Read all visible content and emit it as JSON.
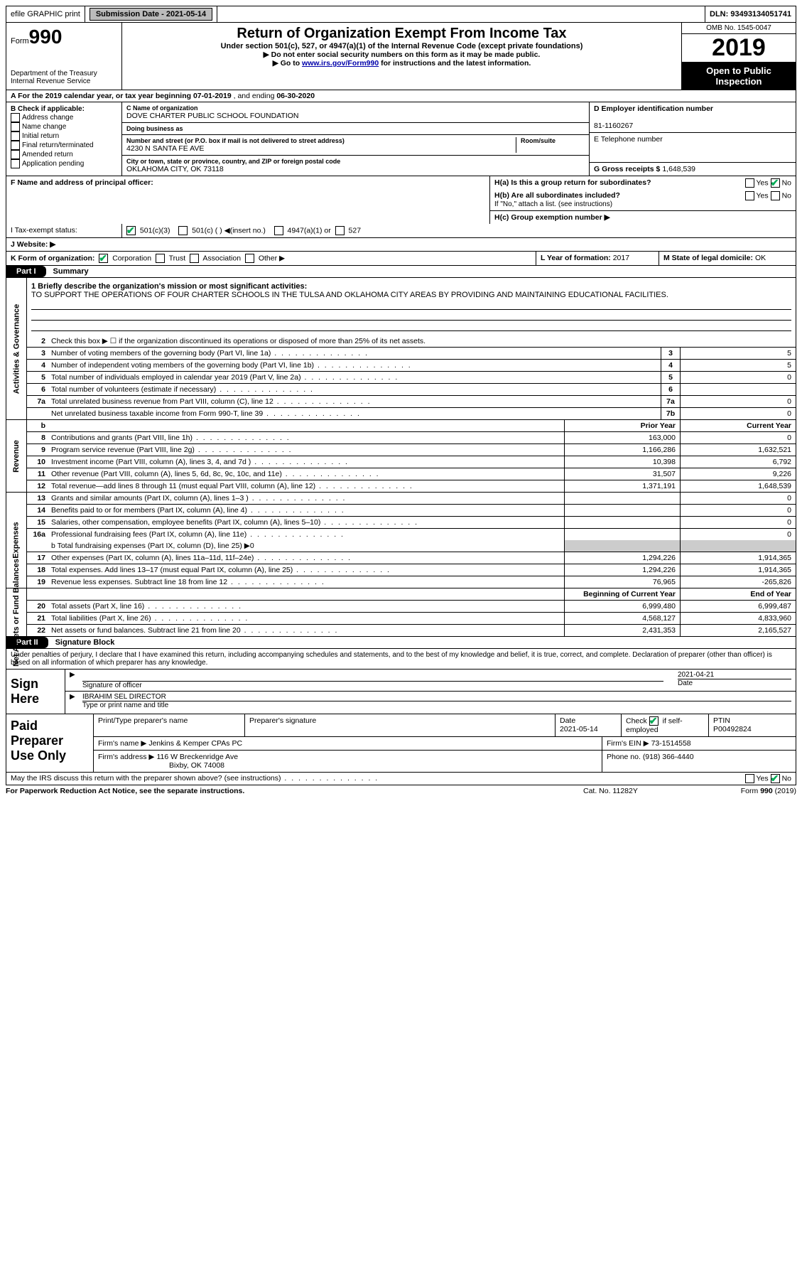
{
  "top_bar": {
    "efile": "efile GRAPHIC print",
    "sub_btn": "Submission Date - 2021-05-14",
    "dln": "DLN: 93493134051741"
  },
  "header": {
    "form_word": "Form",
    "form_num": "990",
    "dept": "Department of the Treasury\nInternal Revenue Service",
    "title": "Return of Organization Exempt From Income Tax",
    "sub1": "Under section 501(c), 527, or 4947(a)(1) of the Internal Revenue Code (except private foundations)",
    "sub2": "▶ Do not enter social security numbers on this form as it may be made public.",
    "sub3a": "▶ Go to ",
    "sub3_link": "www.irs.gov/Form990",
    "sub3b": " for instructions and the latest information.",
    "omb": "OMB No. 1545-0047",
    "year": "2019",
    "open": "Open to Public Inspection"
  },
  "lineA": {
    "prefix": "A  For the 2019 calendar year, or tax year beginning ",
    "begin": "07-01-2019",
    "mid": "  , and ending ",
    "end": "06-30-2020"
  },
  "colB": {
    "title": "B Check if applicable:",
    "items": [
      "Address change",
      "Name change",
      "Initial return",
      "Final return/terminated",
      "Amended return",
      "Application pending"
    ]
  },
  "colC": {
    "c_lbl": "C Name of organization",
    "c_val": "DOVE CHARTER PUBLIC SCHOOL FOUNDATION",
    "dba_lbl": "Doing business as",
    "dba_val": "",
    "addr_lbl": "Number and street (or P.O. box if mail is not delivered to street address)",
    "room_lbl": "Room/suite",
    "addr_val": "4230 N SANTA FE AVE",
    "city_lbl": "City or town, state or province, country, and ZIP or foreign postal code",
    "city_val": "OKLAHOMA CITY, OK  73118"
  },
  "colD": {
    "d_lbl": "D Employer identification number",
    "d_val": "81-1160267",
    "e_lbl": "E Telephone number",
    "e_val": "",
    "g_lbl": "G Gross receipts $",
    "g_val": "1,648,539"
  },
  "rowF": {
    "f_lbl": "F Name and address of principal officer:",
    "f_val": ""
  },
  "rowH": {
    "ha": "H(a)  Is this a group return for subordinates?",
    "hb": "H(b)  Are all subordinates included?",
    "hb_note": "If \"No,\" attach a list. (see instructions)",
    "hc": "H(c)  Group exemption number ▶"
  },
  "rowI": {
    "lbl": "I  Tax-exempt status:",
    "o1": "501(c)(3)",
    "o2": "501(c) ( ) ◀(insert no.)",
    "o3": "4947(a)(1) or",
    "o4": "527"
  },
  "rowJ": {
    "lbl": "J  Website: ▶"
  },
  "rowK": {
    "lbl": "K Form of organization:",
    "o1": "Corporation",
    "o2": "Trust",
    "o3": "Association",
    "o4": "Other ▶"
  },
  "rowL": {
    "lbl": "L Year of formation: ",
    "val": "2017"
  },
  "rowM": {
    "lbl": "M State of legal domicile: ",
    "val": "OK"
  },
  "part1": {
    "badge": "Part I",
    "title": "Summary"
  },
  "mission": {
    "lbl": "1  Briefly describe the organization's mission or most significant activities:",
    "txt": "TO SUPPORT THE OPERATIONS OF FOUR CHARTER SCHOOLS IN THE TULSA AND OKLAHOMA CITY AREAS BY PROVIDING AND MAINTAINING EDUCATIONAL FACILITIES."
  },
  "act_gov": {
    "side": "Activities & Governance",
    "l2": "Check this box ▶ ☐ if the organization discontinued its operations or disposed of more than 25% of its net assets.",
    "rows": [
      {
        "n": "3",
        "t": "Number of voting members of the governing body (Part VI, line 1a)",
        "b": "3",
        "v": "5"
      },
      {
        "n": "4",
        "t": "Number of independent voting members of the governing body (Part VI, line 1b)",
        "b": "4",
        "v": "5"
      },
      {
        "n": "5",
        "t": "Total number of individuals employed in calendar year 2019 (Part V, line 2a)",
        "b": "5",
        "v": "0"
      },
      {
        "n": "6",
        "t": "Total number of volunteers (estimate if necessary)",
        "b": "6",
        "v": ""
      },
      {
        "n": "7a",
        "t": "Total unrelated business revenue from Part VIII, column (C), line 12",
        "b": "7a",
        "v": "0"
      },
      {
        "n": "",
        "t": "Net unrelated business taxable income from Form 990-T, line 39",
        "b": "7b",
        "v": "0"
      }
    ]
  },
  "two_col_hdr": {
    "a": "Prior Year",
    "b": "Current Year"
  },
  "revenue": {
    "side": "Revenue",
    "rows": [
      {
        "n": "8",
        "t": "Contributions and grants (Part VIII, line 1h)",
        "a": "163,000",
        "b": "0"
      },
      {
        "n": "9",
        "t": "Program service revenue (Part VIII, line 2g)",
        "a": "1,166,286",
        "b": "1,632,521"
      },
      {
        "n": "10",
        "t": "Investment income (Part VIII, column (A), lines 3, 4, and 7d )",
        "a": "10,398",
        "b": "6,792"
      },
      {
        "n": "11",
        "t": "Other revenue (Part VIII, column (A), lines 5, 6d, 8c, 9c, 10c, and 11e)",
        "a": "31,507",
        "b": "9,226"
      },
      {
        "n": "12",
        "t": "Total revenue—add lines 8 through 11 (must equal Part VIII, column (A), line 12)",
        "a": "1,371,191",
        "b": "1,648,539"
      }
    ]
  },
  "expenses": {
    "side": "Expenses",
    "rows": [
      {
        "n": "13",
        "t": "Grants and similar amounts (Part IX, column (A), lines 1–3 )",
        "a": "",
        "b": "0"
      },
      {
        "n": "14",
        "t": "Benefits paid to or for members (Part IX, column (A), line 4)",
        "a": "",
        "b": "0"
      },
      {
        "n": "15",
        "t": "Salaries, other compensation, employee benefits (Part IX, column (A), lines 5–10)",
        "a": "",
        "b": "0"
      },
      {
        "n": "16a",
        "t": "Professional fundraising fees (Part IX, column (A), line 11e)",
        "a": "",
        "b": "0"
      }
    ],
    "line_b": "b  Total fundraising expenses (Part IX, column (D), line 25) ▶0",
    "rows2": [
      {
        "n": "17",
        "t": "Other expenses (Part IX, column (A), lines 11a–11d, 11f–24e)",
        "a": "1,294,226",
        "b": "1,914,365"
      },
      {
        "n": "18",
        "t": "Total expenses. Add lines 13–17 (must equal Part IX, column (A), line 25)",
        "a": "1,294,226",
        "b": "1,914,365"
      },
      {
        "n": "19",
        "t": "Revenue less expenses. Subtract line 18 from line 12",
        "a": "76,965",
        "b": "-265,826"
      }
    ]
  },
  "net": {
    "side": "Net Assets or Fund Balances",
    "hdr_a": "Beginning of Current Year",
    "hdr_b": "End of Year",
    "rows": [
      {
        "n": "20",
        "t": "Total assets (Part X, line 16)",
        "a": "6,999,480",
        "b": "6,999,487"
      },
      {
        "n": "21",
        "t": "Total liabilities (Part X, line 26)",
        "a": "4,568,127",
        "b": "4,833,960"
      },
      {
        "n": "22",
        "t": "Net assets or fund balances. Subtract line 21 from line 20",
        "a": "2,431,353",
        "b": "2,165,527"
      }
    ]
  },
  "part2": {
    "badge": "Part II",
    "title": "Signature Block"
  },
  "penalty": "Under penalties of perjury, I declare that I have examined this return, including accompanying schedules and statements, and to the best of my knowledge and belief, it is true, correct, and complete. Declaration of preparer (other than officer) is based on all information of which preparer has any knowledge.",
  "sign": {
    "lbl": "Sign Here",
    "sig_lbl": "Signature of officer",
    "date_lbl": "Date",
    "date": "2021-04-21",
    "name": "IBRAHIM SEL DIRECTOR",
    "name_lbl": "Type or print name and title"
  },
  "paid": {
    "lbl": "Paid Preparer Use Only",
    "c1": "Print/Type preparer's name",
    "c2": "Preparer's signature",
    "c3": "Date",
    "c3v": "2021-05-14",
    "c4a": "Check",
    "c4b": "if self-employed",
    "c5": "PTIN",
    "c5v": "P00492824",
    "firm_lbl": "Firm's name   ▶",
    "firm": "Jenkins & Kemper CPAs PC",
    "ein_lbl": "Firm's EIN ▶",
    "ein": "73-1514558",
    "addr_lbl": "Firm's address ▶",
    "addr1": "116 W Breckenridge Ave",
    "addr2": "Bixby, OK  74008",
    "ph_lbl": "Phone no.",
    "ph": "(918) 366-4440"
  },
  "footer": {
    "q": "May the IRS discuss this return with the preparer shown above? (see instructions)",
    "pra": "For Paperwork Reduction Act Notice, see the separate instructions.",
    "cat": "Cat. No. 11282Y",
    "form": "Form 990 (2019)"
  }
}
